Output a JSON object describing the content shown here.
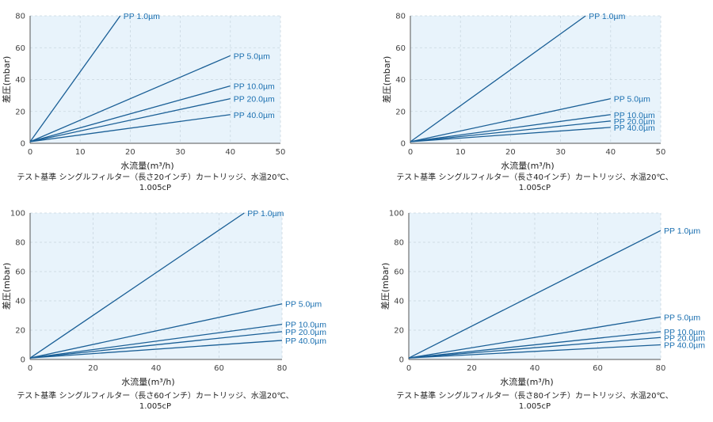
{
  "colors": {
    "plot_bg": "#e8f3fb",
    "line": "#1a5f96",
    "label": "#1a6fb0",
    "grid": "#c9d6e0",
    "axis": "#555555"
  },
  "chart_data": [
    {
      "type": "line",
      "xlabel": "水流量(m³/h)",
      "ylabel": "差圧(mbar)",
      "xlim": [
        0,
        50
      ],
      "ylim": [
        0,
        80
      ],
      "xticks": [
        "0",
        "10",
        "20",
        "30",
        "40",
        "50"
      ],
      "yticks": [
        "0",
        "20",
        "40",
        "60",
        "80"
      ],
      "grid": true,
      "caption": [
        "テスト基準 シングルフィルター（長さ20インチ）カートリッジ、水温20℃、",
        "1.005cP"
      ],
      "series": [
        {
          "name": "PP 1.0µm",
          "x": [
            0,
            18
          ],
          "y": [
            1,
            80
          ]
        },
        {
          "name": "PP 5.0µm",
          "x": [
            0,
            40
          ],
          "y": [
            1,
            55
          ]
        },
        {
          "name": "PP 10.0µm",
          "x": [
            0,
            40
          ],
          "y": [
            1,
            36
          ]
        },
        {
          "name": "PP 20.0µm",
          "x": [
            0,
            40
          ],
          "y": [
            1,
            28
          ]
        },
        {
          "name": "PP 40.0µm",
          "x": [
            0,
            40
          ],
          "y": [
            1,
            18
          ]
        }
      ]
    },
    {
      "type": "line",
      "xlabel": "水流量(m³/h)",
      "ylabel": "差圧(mbar)",
      "xlim": [
        0,
        50
      ],
      "ylim": [
        0,
        80
      ],
      "xticks": [
        "0",
        "10",
        "20",
        "30",
        "40",
        "50"
      ],
      "yticks": [
        "0",
        "20",
        "40",
        "60",
        "80"
      ],
      "grid": true,
      "caption": [
        "テスト基準 シングルフィルター（長さ40インチ）カートリッジ、水温20℃、",
        "1.005cP"
      ],
      "series": [
        {
          "name": "PP 1.0µm",
          "x": [
            0,
            35
          ],
          "y": [
            1,
            80
          ]
        },
        {
          "name": "PP 5.0µm",
          "x": [
            0,
            40
          ],
          "y": [
            1,
            28
          ]
        },
        {
          "name": "PP 10.0µm",
          "x": [
            0,
            40
          ],
          "y": [
            1,
            18
          ]
        },
        {
          "name": "PP 20.0µm",
          "x": [
            0,
            40
          ],
          "y": [
            1,
            14
          ]
        },
        {
          "name": "PP 40.0µm",
          "x": [
            0,
            40
          ],
          "y": [
            1,
            10
          ]
        }
      ]
    },
    {
      "type": "line",
      "xlabel": "水流量(m³/h)",
      "ylabel": "差圧(mbar)",
      "xlim": [
        0,
        80
      ],
      "ylim": [
        0,
        100
      ],
      "xticks": [
        "0",
        "20",
        "40",
        "60",
        "80"
      ],
      "yticks": [
        "0",
        "20",
        "40",
        "60",
        "80",
        "100"
      ],
      "grid": true,
      "caption": [
        "テスト基準 シングルフィルター（長さ60インチ）カートリッジ、水温20℃、",
        "1.005cP"
      ],
      "series": [
        {
          "name": "PP 1.0µm",
          "x": [
            0,
            68
          ],
          "y": [
            1,
            100
          ]
        },
        {
          "name": "PP 5.0µm",
          "x": [
            0,
            80
          ],
          "y": [
            1,
            38
          ]
        },
        {
          "name": "PP  10.0µm",
          "x": [
            0,
            80
          ],
          "y": [
            1,
            24
          ]
        },
        {
          "name": "PP  20.0µm",
          "x": [
            0,
            80
          ],
          "y": [
            1,
            19
          ]
        },
        {
          "name": "PP 40.0µm",
          "x": [
            0,
            80
          ],
          "y": [
            1,
            13
          ]
        }
      ]
    },
    {
      "type": "line",
      "xlabel": "水流量(m³/h)",
      "ylabel": "差圧(mbar)",
      "xlim": [
        0,
        80
      ],
      "ylim": [
        0,
        100
      ],
      "xticks": [
        "0",
        "20",
        "40",
        "60",
        "80"
      ],
      "yticks": [
        "0",
        "20",
        "40",
        "60",
        "80",
        "100"
      ],
      "grid": true,
      "caption": [
        "テスト基準 シングルフィルター（長さ80インチ）カートリッジ、水温20℃、",
        "1.005cP"
      ],
      "series": [
        {
          "name": "PP 1.0µm",
          "x": [
            0,
            80
          ],
          "y": [
            1,
            88
          ]
        },
        {
          "name": "PP 5.0µm",
          "x": [
            0,
            80
          ],
          "y": [
            1,
            29
          ]
        },
        {
          "name": "PP  10.0µm",
          "x": [
            0,
            80
          ],
          "y": [
            1,
            19
          ]
        },
        {
          "name": "PP  20.0µm",
          "x": [
            0,
            80
          ],
          "y": [
            1,
            15
          ]
        },
        {
          "name": "PP 40.0µm",
          "x": [
            0,
            80
          ],
          "y": [
            1,
            10
          ]
        }
      ]
    }
  ]
}
